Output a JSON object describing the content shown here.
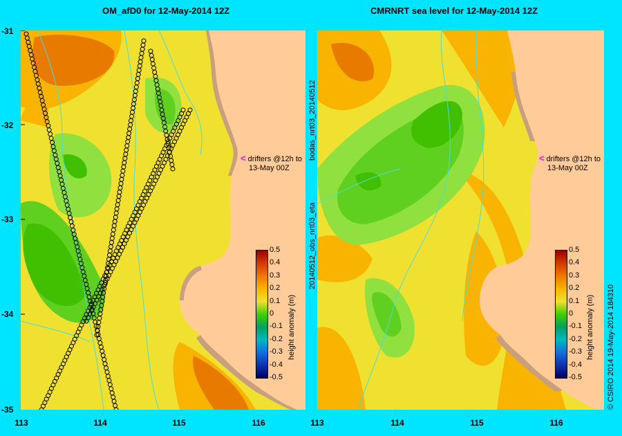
{
  "left_title": "OM_afD0 for 12-May-2014 12Z",
  "right_title": "CMRNRT sea level  for 12-May-2014 12Z",
  "y_ticks": [
    "-31",
    "-32",
    "-33",
    "-34",
    "-35"
  ],
  "x_ticks": [
    "113",
    "114",
    "115",
    "116"
  ],
  "drifter_note_line1": "drifters @12h to",
  "drifter_note_line2": "13-May 00Z",
  "colorbar_title": "height anomaly (m)",
  "colorbar_ticks": [
    "0.5",
    "0.4",
    "0.3",
    "0.2",
    "0.1",
    "0",
    "-0.1",
    "-0.2",
    "-0.3",
    "-0.4",
    "-0.5"
  ],
  "right_side_label_top": "bodas_nrt03_20140512",
  "right_side_label_bottom": "20140512_obs_nrt03_eta",
  "copyright": "© CSIRO 2014   19-May-2014 184310",
  "colors": {
    "background": "#00e5ff",
    "land": "#ffcc99",
    "shelf": "#c8a080",
    "contour": "#40e0e0",
    "arrow": "#ff00ff"
  },
  "map_extent": {
    "lon": [
      113,
      116.7
    ],
    "lat": [
      -35,
      -31
    ]
  }
}
